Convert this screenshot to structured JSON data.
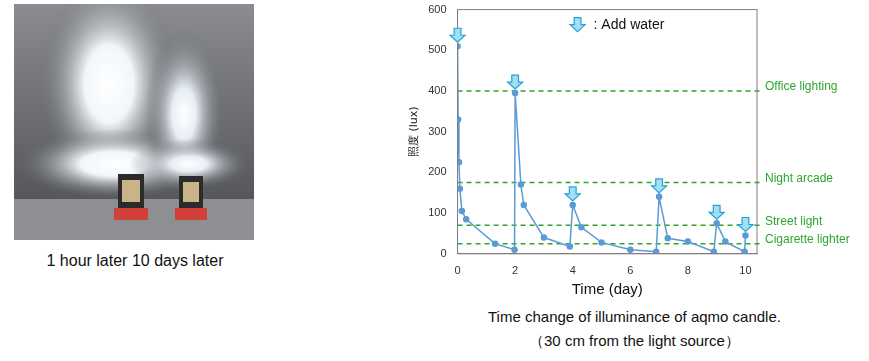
{
  "photo": {
    "caption": "1 hour later 10 days later"
  },
  "chart_data": {
    "type": "line",
    "title": "Time change of illuminance of aqmo candle.",
    "subtitle": "（30 cm from the light source）",
    "x_label": "Time (day)",
    "y_label": "照度 (lux)",
    "x": [
      0,
      0.02,
      0.05,
      0.08,
      0.15,
      0.3,
      1.3,
      1.98,
      2,
      2.2,
      2.3,
      3,
      3.9,
      4,
      4.3,
      5,
      6,
      6.9,
      7,
      7.3,
      8,
      8.9,
      9,
      9.3,
      9.97,
      10
    ],
    "values": [
      510,
      330,
      225,
      160,
      105,
      85,
      25,
      10,
      395,
      170,
      120,
      40,
      18,
      120,
      65,
      28,
      10,
      5,
      140,
      38,
      30,
      5,
      75,
      30,
      5,
      45
    ],
    "color": "#5b9bd5",
    "marker": "circle",
    "xlim": [
      0,
      10.4
    ],
    "xticks": [
      0,
      2,
      4,
      6,
      8,
      10
    ],
    "ylim": [
      0,
      600
    ],
    "yticks": [
      0,
      100,
      200,
      300,
      400,
      500,
      600
    ],
    "grid": false,
    "reference_lines": [
      {
        "value": 400,
        "label": "Office lighting"
      },
      {
        "value": 175,
        "label": "Night arcade"
      },
      {
        "value": 70,
        "label": "Street light"
      },
      {
        "value": 25,
        "label": "Cigarette lighter"
      }
    ],
    "reference_color": "#2ea52e",
    "annotation": ": Add water",
    "add_water_days": [
      0,
      2,
      4,
      7,
      9,
      10
    ]
  }
}
